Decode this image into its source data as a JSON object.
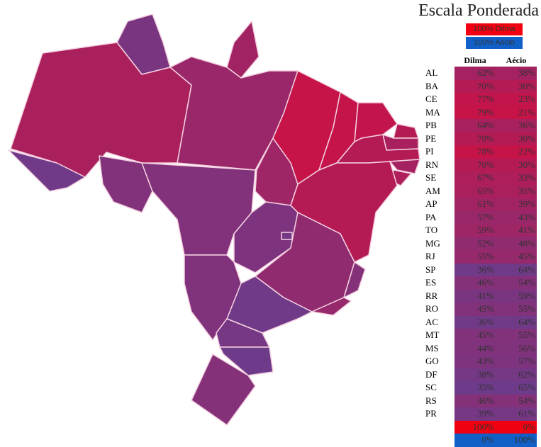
{
  "title": "Escala Ponderada",
  "legend": {
    "dilma": "100% Dilma",
    "aecio": "100% Aécio"
  },
  "table": {
    "headers": [
      "Dilma",
      "Aécio"
    ],
    "rows": [
      [
        "AL",
        "62%",
        "38%"
      ],
      [
        "BA",
        "70%",
        "30%"
      ],
      [
        "CE",
        "77%",
        "23%"
      ],
      [
        "MA",
        "79%",
        "21%"
      ],
      [
        "PB",
        "64%",
        "36%"
      ],
      [
        "PE",
        "70%",
        "30%"
      ],
      [
        "PI",
        "78%",
        "22%"
      ],
      [
        "RN",
        "70%",
        "30%"
      ],
      [
        "SE",
        "67%",
        "33%"
      ],
      [
        "AM",
        "65%",
        "35%"
      ],
      [
        "AP",
        "61%",
        "39%"
      ],
      [
        "PA",
        "57%",
        "43%"
      ],
      [
        "TO",
        "59%",
        "41%"
      ],
      [
        "MG",
        "52%",
        "48%"
      ],
      [
        "RJ",
        "55%",
        "45%"
      ],
      [
        "SP",
        "36%",
        "64%"
      ],
      [
        "ES",
        "46%",
        "54%"
      ],
      [
        "RR",
        "41%",
        "59%"
      ],
      [
        "RO",
        "45%",
        "55%"
      ],
      [
        "AC",
        "36%",
        "64%"
      ],
      [
        "MT",
        "45%",
        "55%"
      ],
      [
        "MS",
        "44%",
        "56%"
      ],
      [
        "GO",
        "43%",
        "57%"
      ],
      [
        "DF",
        "38%",
        "62%"
      ],
      [
        "SC",
        "35%",
        "65%"
      ],
      [
        "RS",
        "46%",
        "54%"
      ],
      [
        "PR",
        "39%",
        "61%"
      ]
    ],
    "scale_rows": [
      [
        "100%",
        "0%"
      ],
      [
        "0%",
        "100%"
      ]
    ]
  }
}
